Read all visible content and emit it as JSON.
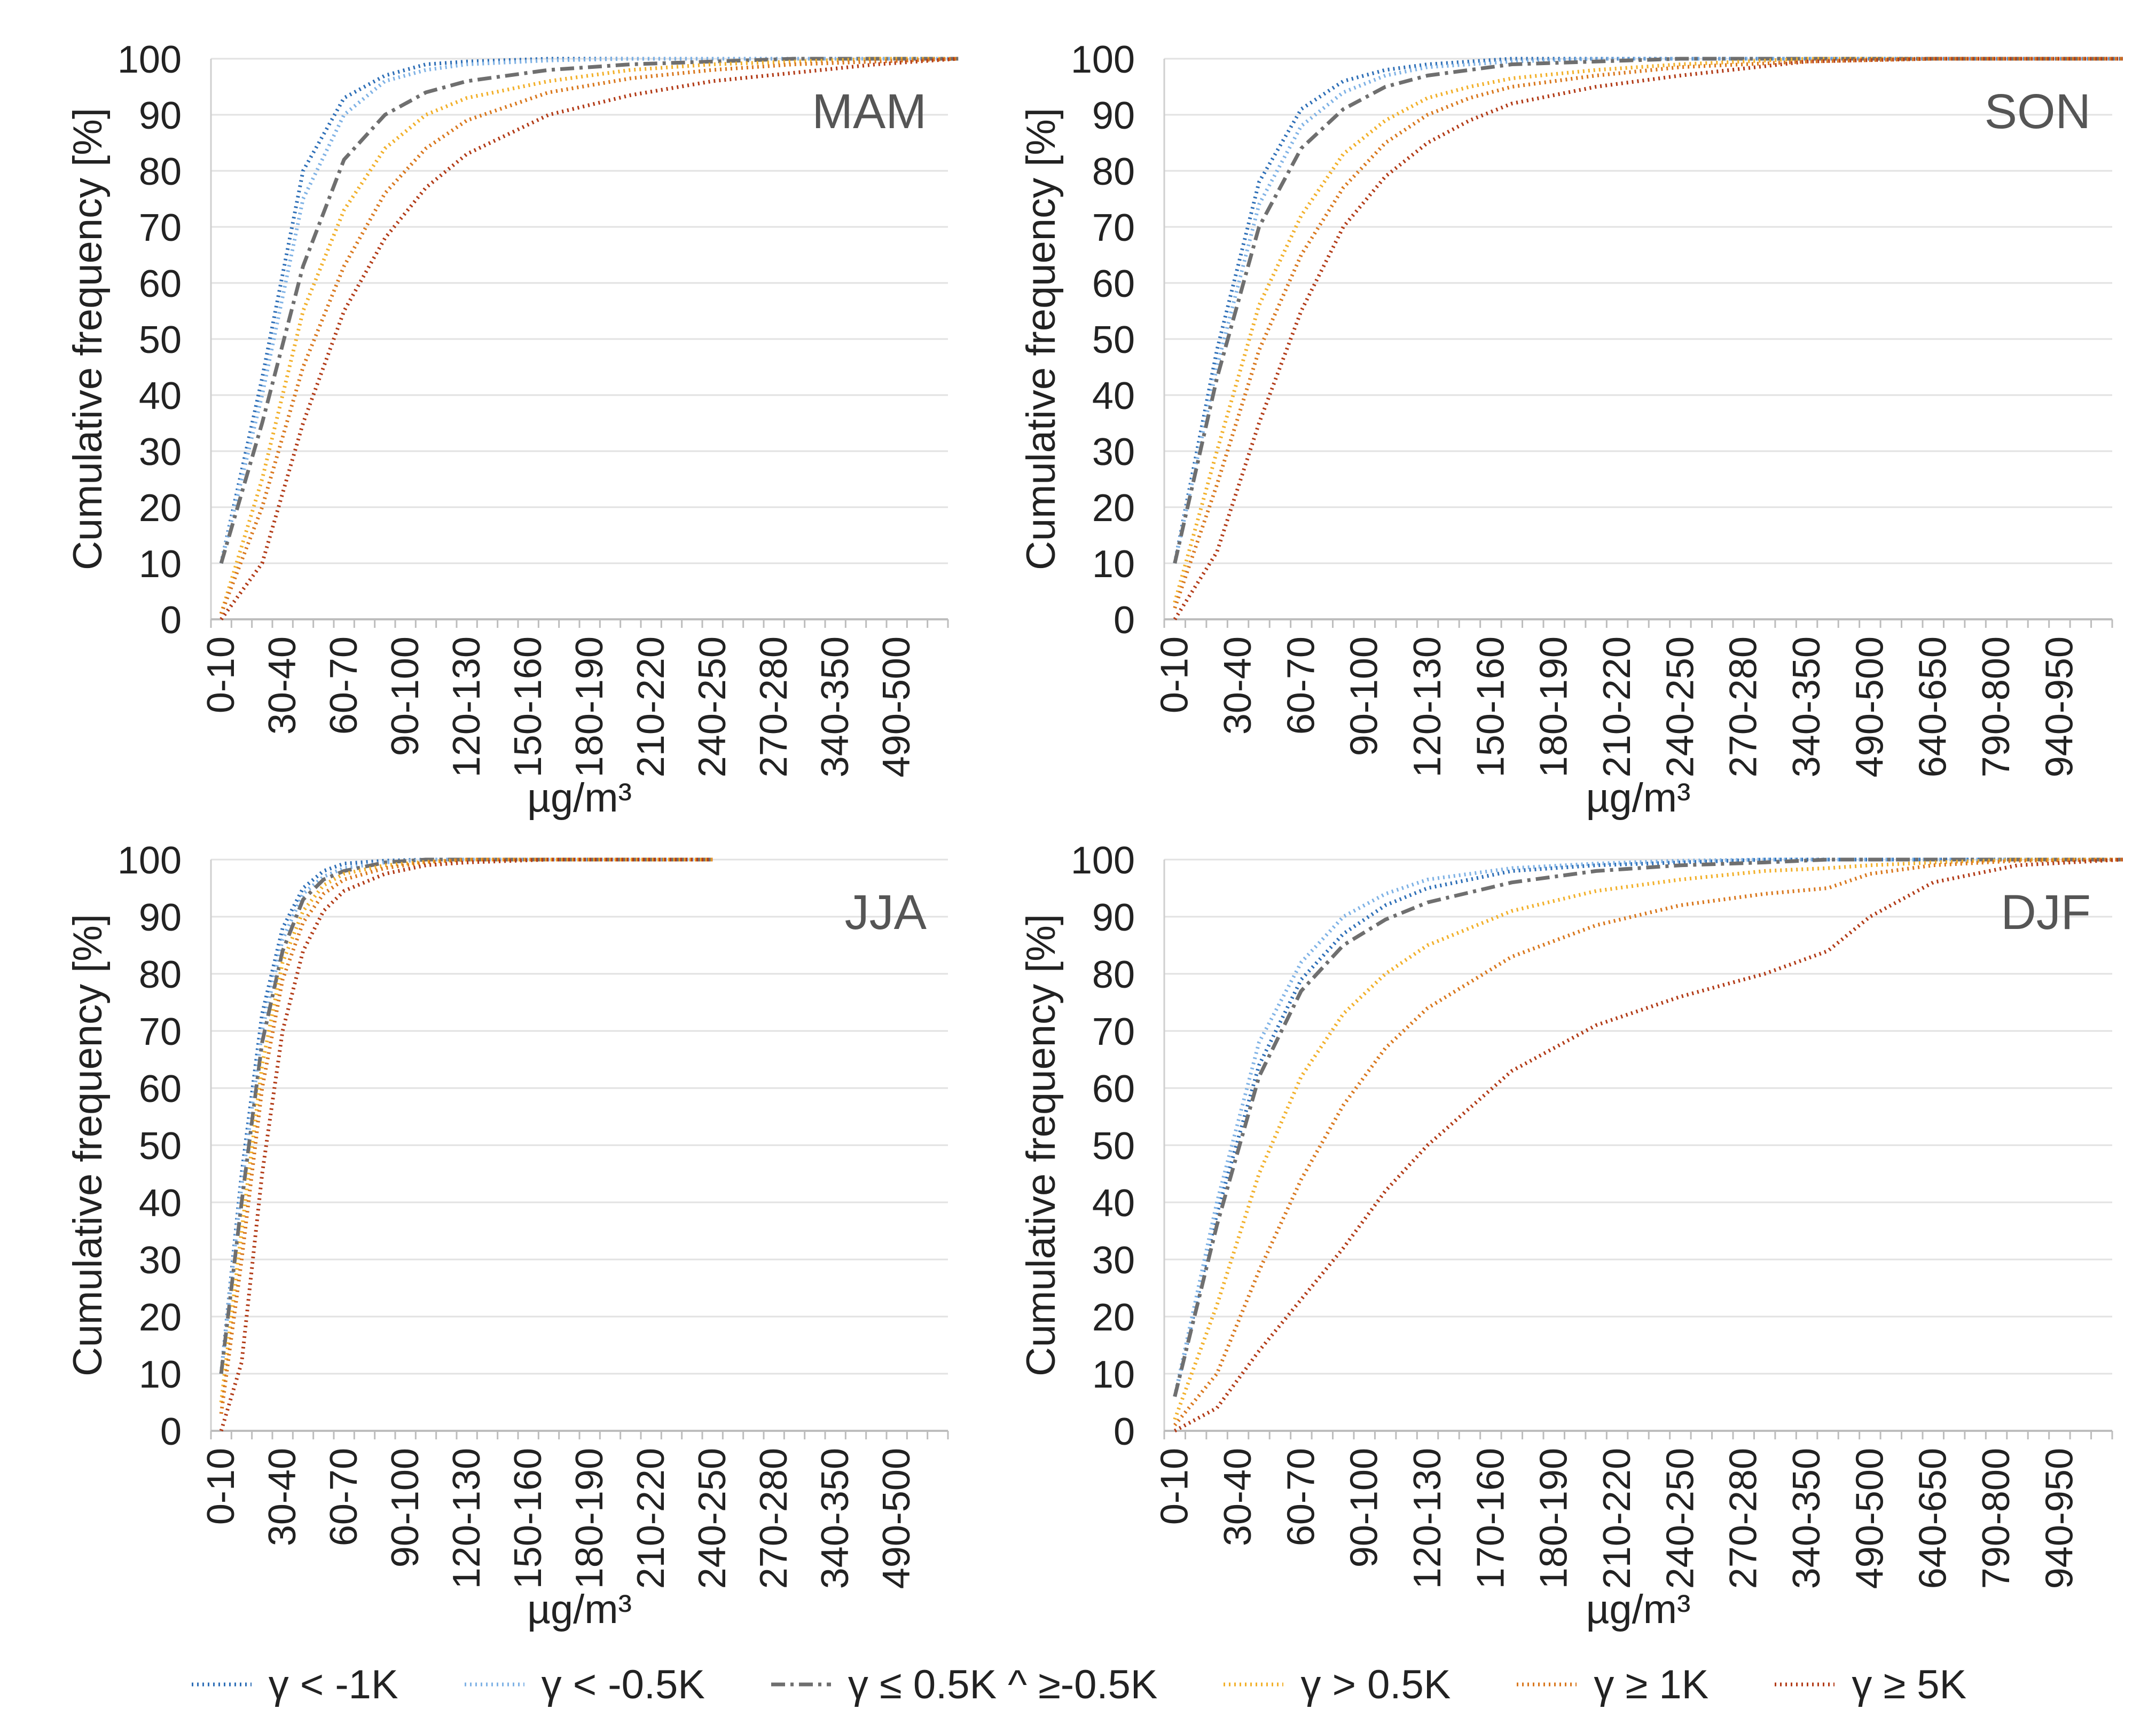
{
  "series_styles": [
    {
      "name": "γ < -1K",
      "color": "#2e6fb7",
      "dash": "dot"
    },
    {
      "name": "γ < -0.5K",
      "color": "#7fb2e5",
      "dash": "dot"
    },
    {
      "name": "γ ≤ 0.5K ^ ≥-0.5K",
      "color": "#6f6f6f",
      "dash": "dashdot"
    },
    {
      "name": "γ > 0.5K",
      "color": "#f2b02a",
      "dash": "dot"
    },
    {
      "name": "γ ≥ 1K",
      "color": "#d9771d",
      "dash": "dot"
    },
    {
      "name": "γ ≥ 5K",
      "color": "#b23a16",
      "dash": "dot"
    }
  ],
  "chart_data": [
    {
      "type": "line",
      "title": "MAM",
      "ylabel": "Cumulative frequency [%]",
      "xlabel": "µg/m³",
      "ylim": [
        0,
        100
      ],
      "yticks": [
        0,
        10,
        20,
        30,
        40,
        50,
        60,
        70,
        80,
        90,
        100
      ],
      "grid": true,
      "tick_labels": [
        "0-10",
        "30-40",
        "60-70",
        "90-100",
        "120-130",
        "150-160",
        "180-190",
        "210-220",
        "240-250",
        "270-280",
        "340-350",
        "490-500"
      ],
      "n_bins": 36,
      "x": [
        0,
        2,
        4,
        6,
        8,
        10,
        12,
        16,
        20,
        24,
        28,
        32,
        36
      ],
      "series": [
        {
          "name": "γ < -1K",
          "values": [
            10,
            43,
            80,
            93,
            97,
            99,
            99.5,
            100,
            100,
            100,
            100,
            100,
            100
          ]
        },
        {
          "name": "γ < -0.5K",
          "values": [
            10,
            40,
            75,
            90,
            96,
            98,
            99,
            99.7,
            100,
            100,
            100,
            100,
            100
          ]
        },
        {
          "name": "γ ≤ 0.5K ^ ≥-0.5K",
          "values": [
            10,
            35,
            63,
            82,
            90,
            94,
            96,
            98,
            99,
            99.5,
            100,
            100,
            100
          ]
        },
        {
          "name": "γ > 0.5K",
          "values": [
            1,
            25,
            55,
            73,
            84,
            90,
            93,
            96,
            98,
            99,
            99.5,
            100,
            100
          ]
        },
        {
          "name": "γ ≥ 1K",
          "values": [
            1,
            20,
            45,
            63,
            76,
            84,
            89,
            94,
            96.5,
            98,
            99,
            99.5,
            100
          ]
        },
        {
          "name": "γ ≥ 5K",
          "values": [
            0,
            10,
            35,
            55,
            68,
            77,
            83,
            90,
            93.5,
            96,
            97.5,
            99,
            100
          ]
        }
      ]
    },
    {
      "type": "line",
      "title": "SON",
      "ylabel": "Cumulative frequency [%]",
      "xlabel": "µg/m³",
      "ylim": [
        0,
        100
      ],
      "yticks": [
        0,
        10,
        20,
        30,
        40,
        50,
        60,
        70,
        80,
        90,
        100
      ],
      "grid": true,
      "tick_labels": [
        "0-10",
        "30-40",
        "60-70",
        "90-100",
        "120-130",
        "150-160",
        "180-190",
        "210-220",
        "240-250",
        "270-280",
        "340-350",
        "490-500",
        "640-650",
        "790-800",
        "940-950"
      ],
      "n_bins": 45,
      "x": [
        0,
        2,
        4,
        6,
        8,
        10,
        12,
        14,
        16,
        20,
        24,
        30,
        36,
        45
      ],
      "series": [
        {
          "name": "γ < -1K",
          "values": [
            10,
            48,
            78,
            91,
            96,
            98,
            99,
            99.5,
            100,
            100,
            100,
            100,
            100,
            100
          ]
        },
        {
          "name": "γ < -0.5K",
          "values": [
            10,
            45,
            74,
            88,
            94,
            97,
            98.5,
            99,
            99.5,
            100,
            100,
            100,
            100,
            100
          ]
        },
        {
          "name": "γ ≤ 0.5K ^ ≥-0.5K",
          "values": [
            10,
            43,
            70,
            84,
            91,
            95,
            97,
            98,
            99,
            99.5,
            100,
            100,
            100,
            100
          ]
        },
        {
          "name": "γ > 0.5K",
          "values": [
            3,
            30,
            56,
            72,
            83,
            89,
            93,
            95,
            96.5,
            98,
            99,
            100,
            100,
            100
          ]
        },
        {
          "name": "γ ≥ 1K",
          "values": [
            2,
            24,
            48,
            65,
            77,
            85,
            90,
            93,
            95,
            97,
            98.5,
            99.5,
            100,
            100
          ]
        },
        {
          "name": "γ ≥ 5K",
          "values": [
            0,
            12,
            35,
            55,
            70,
            79,
            85,
            89,
            92,
            95,
            97,
            99.5,
            100,
            100
          ]
        }
      ]
    },
    {
      "type": "line",
      "title": "JJA",
      "ylabel": "Cumulative frequency [%]",
      "xlabel": "µg/m³",
      "ylim": [
        0,
        100
      ],
      "yticks": [
        0,
        10,
        20,
        30,
        40,
        50,
        60,
        70,
        80,
        90,
        100
      ],
      "grid": true,
      "tick_labels": [
        "0-10",
        "30-40",
        "60-70",
        "90-100",
        "120-130",
        "150-160",
        "180-190",
        "210-220",
        "240-250",
        "270-280",
        "340-350",
        "490-500"
      ],
      "n_bins": 36,
      "x": [
        0,
        1,
        2,
        3,
        4,
        5,
        6,
        8,
        10,
        12,
        16,
        20,
        24
      ],
      "series": [
        {
          "name": "γ < -1K",
          "values": [
            10,
            45,
            73,
            88,
            95,
            98,
            99.3,
            99.8,
            100,
            100,
            100,
            100,
            100
          ]
        },
        {
          "name": "γ < -0.5K",
          "values": [
            10,
            43,
            70,
            86,
            94,
            97,
            98.5,
            99.5,
            100,
            100,
            100,
            100,
            100
          ]
        },
        {
          "name": "γ ≤ 0.5K ^ ≥-0.5K",
          "values": [
            10,
            40,
            68,
            84,
            93,
            96.5,
            98,
            99.5,
            100,
            100,
            100,
            100,
            100
          ]
        },
        {
          "name": "γ > 0.5K",
          "values": [
            5,
            35,
            64,
            82,
            91,
            95.5,
            97.5,
            99,
            99.6,
            100,
            100,
            100,
            100
          ]
        },
        {
          "name": "γ ≥ 1K",
          "values": [
            3,
            30,
            60,
            79,
            89,
            94,
            96.5,
            98.5,
            99.5,
            100,
            100,
            100,
            100
          ]
        },
        {
          "name": "γ ≥ 5K",
          "values": [
            0,
            12,
            45,
            70,
            84,
            91,
            94.5,
            97.5,
            99,
            99.5,
            100,
            100,
            100
          ]
        }
      ]
    },
    {
      "type": "line",
      "title": "DJF",
      "ylabel": "Cumulative frequency [%]",
      "xlabel": "µg/m³",
      "ylim": [
        0,
        100
      ],
      "yticks": [
        0,
        10,
        20,
        30,
        40,
        50,
        60,
        70,
        80,
        90,
        100
      ],
      "grid": true,
      "tick_labels": [
        "0-10",
        "30-40",
        "60-70",
        "90-100",
        "120-130",
        "170-160",
        "180-190",
        "210-220",
        "240-250",
        "270-280",
        "340-350",
        "490-500",
        "640-650",
        "790-800",
        "940-950"
      ],
      "n_bins": 45,
      "x": [
        0,
        2,
        4,
        6,
        8,
        10,
        12,
        16,
        20,
        24,
        28,
        31,
        33,
        36,
        40,
        45
      ],
      "series": [
        {
          "name": "γ < -1K",
          "values": [
            6,
            38,
            64,
            79,
            87,
            92,
            95,
            98,
            99,
            99.5,
            100,
            100,
            100,
            100,
            100,
            100
          ]
        },
        {
          "name": "γ < -0.5K",
          "values": [
            6,
            40,
            68,
            82,
            90,
            94,
            96.5,
            98.5,
            99.3,
            99.8,
            100,
            100,
            100,
            100,
            100,
            100
          ]
        },
        {
          "name": "γ ≤ 0.5K ^ ≥-0.5K",
          "values": [
            6,
            36,
            62,
            77,
            85,
            89.5,
            92.5,
            96,
            98,
            99,
            99.5,
            100,
            100,
            100,
            100,
            100
          ]
        },
        {
          "name": "γ > 0.5K",
          "values": [
            2,
            22,
            45,
            62,
            73,
            80,
            85,
            91,
            94.5,
            96.5,
            98,
            98.5,
            99,
            99.5,
            100,
            100
          ]
        },
        {
          "name": "γ ≥ 1K",
          "values": [
            1,
            10,
            28,
            44,
            57,
            67,
            74,
            83,
            88.5,
            92,
            94,
            95,
            97.5,
            99,
            99.8,
            100
          ]
        },
        {
          "name": "γ ≥ 5K",
          "values": [
            0,
            4,
            14,
            23,
            32,
            42,
            50,
            63,
            71,
            76,
            80,
            84,
            90,
            96,
            99,
            100
          ]
        }
      ]
    }
  ]
}
